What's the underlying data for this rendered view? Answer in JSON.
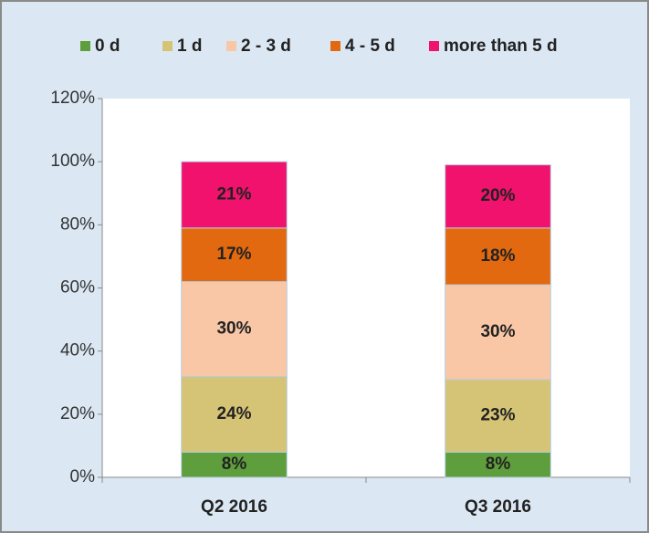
{
  "chart_data": {
    "type": "stacked_bar",
    "categories": [
      "Q2 2016",
      "Q3 2016"
    ],
    "series": [
      {
        "name": "0 d",
        "color": "#5e9e3c",
        "values": [
          8,
          8
        ],
        "value_labels": [
          "8%",
          "8%"
        ]
      },
      {
        "name": "1 d",
        "color": "#d6c476",
        "values": [
          24,
          23
        ],
        "value_labels": [
          "24%",
          "23%"
        ]
      },
      {
        "name": "2 - 3 d",
        "color": "#f9c7a6",
        "values": [
          30,
          30
        ],
        "value_labels": [
          "30%",
          "30%"
        ]
      },
      {
        "name": "4 - 5 d",
        "color": "#e2690f",
        "values": [
          17,
          18
        ],
        "value_labels": [
          "17%",
          "18%"
        ]
      },
      {
        "name": "more than 5 d",
        "color": "#f0126c",
        "values": [
          21,
          20
        ],
        "value_labels": [
          "21%",
          "20%"
        ]
      }
    ],
    "ylim": [
      0,
      120
    ],
    "yticks": [
      {
        "value": 0,
        "label": "0%"
      },
      {
        "value": 20,
        "label": "20%"
      },
      {
        "value": 40,
        "label": "40%"
      },
      {
        "value": 60,
        "label": "60%"
      },
      {
        "value": 80,
        "label": "80%"
      },
      {
        "value": 100,
        "label": "100%"
      },
      {
        "value": 120,
        "label": "120%"
      }
    ],
    "legend": "top",
    "grid": false
  }
}
